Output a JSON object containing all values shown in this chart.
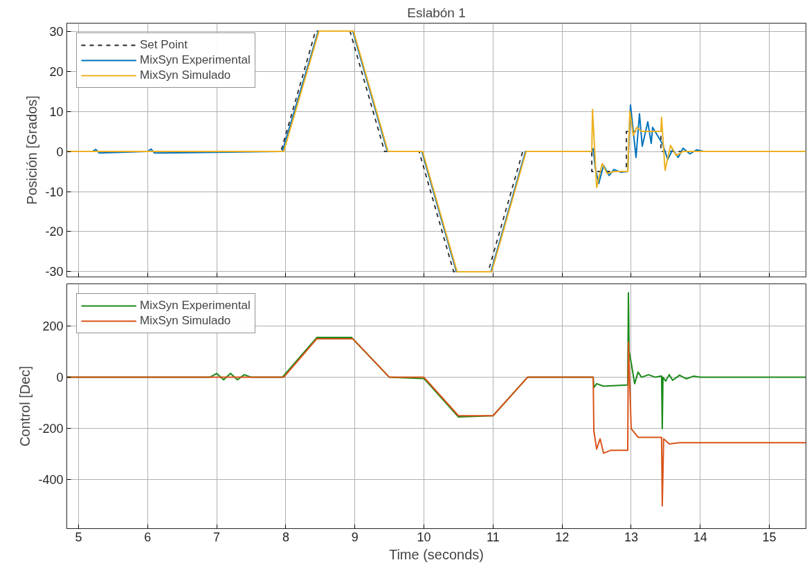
{
  "chart_data": [
    {
      "type": "line",
      "title": "Eslabón 1",
      "ylabel": "Posición [Grados]",
      "xlim": [
        4.83,
        15.53
      ],
      "xticks": [
        5,
        6,
        7,
        8,
        9,
        10,
        11,
        12,
        13,
        14,
        15
      ],
      "ylim": [
        -31.3,
        32
      ],
      "yticks": [
        -30,
        -20,
        -10,
        0,
        10,
        20,
        30
      ],
      "grid": true,
      "legend": "top left",
      "tick_labels": "y",
      "series": [
        {
          "name": "Set Point",
          "color": "#262626",
          "line_style": "dashed",
          "x": [
            4.83,
            7.93,
            8.43,
            8.93,
            9.43,
            9.93,
            10.43,
            10.93,
            11.43,
            12.43,
            12.43,
            12.93,
            12.93,
            13.43,
            13.43,
            15.53
          ],
          "values": [
            0,
            0,
            30,
            30,
            0,
            0,
            -30,
            -30,
            0,
            0,
            -5,
            -5,
            5,
            5,
            0,
            0
          ]
        },
        {
          "name": "MixSyn Experimental",
          "color": "#0072bd",
          "x": [
            4.83,
            5.2,
            5.25,
            5.3,
            6.0,
            6.05,
            6.1,
            7.95,
            8.47,
            8.97,
            9.47,
            9.97,
            10.47,
            10.97,
            11.47,
            12.43,
            12.45,
            12.48,
            12.53,
            12.6,
            12.68,
            12.75,
            12.85,
            12.95,
            12.99,
            13.07,
            13.12,
            13.16,
            13.24,
            13.29,
            13.31,
            13.38,
            13.45,
            13.53,
            13.6,
            13.68,
            13.75,
            13.85,
            13.95,
            14.05,
            15.53
          ],
          "values": [
            0,
            0,
            0.5,
            -0.4,
            0,
            0.6,
            -0.4,
            0,
            30,
            30,
            0,
            0,
            -30,
            -30,
            0,
            0,
            0.7,
            -4,
            -8,
            -3.5,
            -6,
            -4.5,
            -5.2,
            -5,
            11.6,
            -1.5,
            9.4,
            1.3,
            7.4,
            2,
            6,
            4,
            2,
            -2,
            0.5,
            -1.5,
            0.8,
            -0.6,
            0.4,
            0,
            0
          ]
        },
        {
          "name": "MixSyn Simulado",
          "color": "#edb120",
          "x": [
            4.83,
            7.97,
            8.48,
            8.98,
            9.48,
            9.98,
            10.48,
            10.98,
            11.48,
            12.43,
            12.44,
            12.5,
            12.58,
            12.65,
            12.75,
            12.95,
            12.98,
            13.03,
            13.08,
            13.15,
            13.43,
            13.44,
            13.49,
            13.57,
            13.65,
            13.75,
            15.53
          ],
          "values": [
            0,
            0,
            30,
            30,
            0,
            0,
            -30,
            -30,
            0,
            0,
            10.5,
            -9,
            -3,
            -5.5,
            -5,
            -5,
            10,
            4,
            6,
            5,
            5,
            8.5,
            -4.7,
            1.5,
            -1,
            0,
            0
          ]
        }
      ]
    },
    {
      "type": "line",
      "xlabel": "Time (seconds)",
      "ylabel": "Control [Dec]",
      "xlim": [
        4.83,
        15.53
      ],
      "xticks": [
        5,
        6,
        7,
        8,
        9,
        10,
        11,
        12,
        13,
        14,
        15
      ],
      "ylim": [
        -590,
        364
      ],
      "yticks": [
        -400,
        -200,
        0,
        200
      ],
      "grid": true,
      "legend": "top left",
      "series": [
        {
          "name": "MixSyn Experimental",
          "color": "#1a8a1a",
          "x": [
            4.83,
            6.9,
            7.0,
            7.1,
            7.2,
            7.3,
            7.4,
            7.5,
            7.95,
            8.45,
            8.95,
            9.5,
            10.0,
            10.5,
            11.0,
            11.5,
            12.45,
            12.46,
            12.5,
            12.6,
            12.95,
            12.96,
            12.97,
            13.0,
            13.05,
            13.1,
            13.15,
            13.25,
            13.35,
            13.44,
            13.45,
            13.46,
            13.5,
            13.55,
            13.6,
            13.7,
            13.8,
            13.9,
            14.0,
            15.53
          ],
          "values": [
            0,
            0,
            15,
            -10,
            15,
            -10,
            10,
            0,
            0,
            155,
            155,
            0,
            -5,
            -155,
            -150,
            0,
            0,
            -40,
            -25,
            -35,
            -30,
            329,
            100,
            56,
            -25,
            20,
            0,
            10,
            0,
            5,
            -200,
            0,
            -15,
            10,
            -12,
            8,
            -6,
            4,
            0,
            0
          ]
        },
        {
          "name": "MixSyn Simulado",
          "color": "#d95319",
          "x": [
            4.83,
            7.97,
            8.45,
            8.97,
            9.5,
            10.0,
            10.5,
            11.0,
            11.5,
            12.45,
            12.46,
            12.5,
            12.55,
            12.6,
            12.7,
            12.95,
            12.96,
            13.0,
            13.1,
            13.44,
            13.45,
            13.47,
            13.55,
            13.7,
            15.53
          ],
          "values": [
            0,
            0,
            150,
            150,
            0,
            0,
            -150,
            -150,
            0,
            0,
            -210,
            -280,
            -240,
            -296,
            -285,
            -285,
            136,
            -200,
            -234,
            -234,
            -501,
            -240,
            -260,
            -255,
            -255
          ]
        }
      ]
    }
  ]
}
